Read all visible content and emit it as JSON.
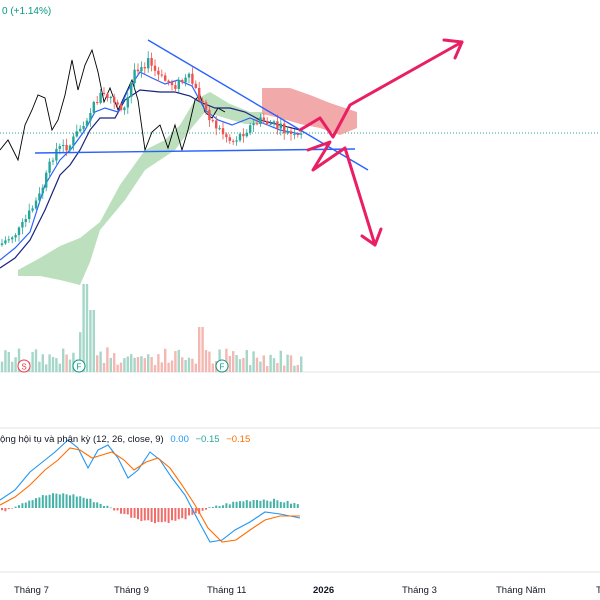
{
  "header": {
    "change_text": "0 (+1.14%)"
  },
  "macd": {
    "label": "ộng hội tụ và phân kỳ (12, 26, close, 9)",
    "v1": "0.00",
    "v2": "−0.15",
    "v3": "−0.15"
  },
  "event_markers": [
    {
      "letter": "S",
      "color": "#f23645"
    },
    {
      "letter": "F",
      "color": "#089981"
    },
    {
      "letter": "F",
      "color": "#089981"
    }
  ],
  "x_axis_labels": [
    "Tháng 7",
    "Tháng 9",
    "Tháng 11",
    "2026",
    "Tháng 3",
    "Tháng Năm",
    "T"
  ],
  "colors": {
    "up": "#26a69a",
    "down": "#ef5350",
    "tenkan": "#2962ff",
    "kijun": "#1a237e",
    "lagging": "#000000",
    "cloud_bull": "#a5d6a7",
    "cloud_bear": "#ef9a9a",
    "trendline": "#2962ff",
    "forecast": "#e91e63",
    "macd_line": "#2196f3",
    "signal_line": "#ff6d00"
  },
  "chart_data": {
    "type": "candlestick",
    "panels": [
      "price with Ichimoku cloud and trendlines",
      "volume",
      "MACD (12, 26, close, 9)"
    ],
    "x": [
      "Tháng 7",
      "Tháng 9",
      "Tháng 11",
      "2026",
      "Tháng 3",
      "Tháng Năm"
    ],
    "macd": {
      "macd": 0.0,
      "signal": -0.15,
      "histogram": -0.15
    },
    "annotations": [
      "descending triangle",
      "forecast arrows up and down"
    ]
  }
}
